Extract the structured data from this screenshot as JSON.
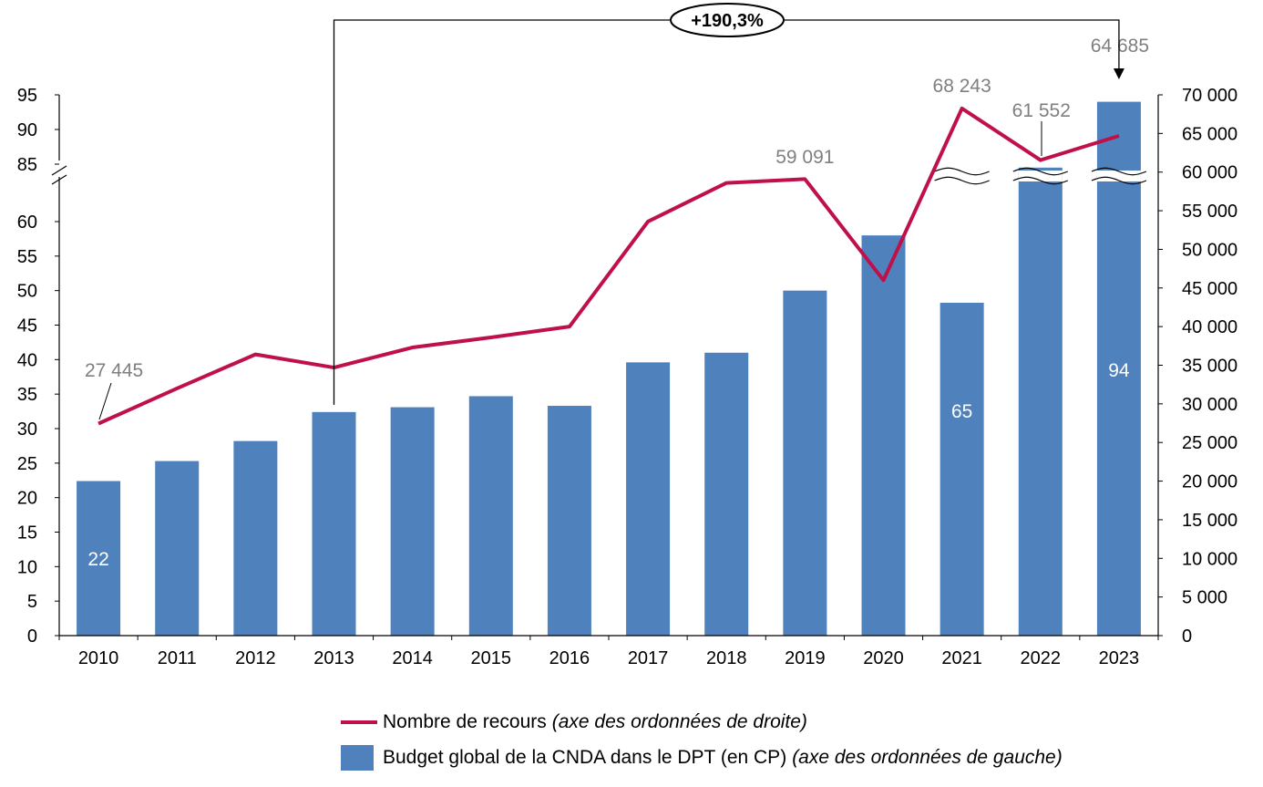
{
  "chart_data": {
    "type": "bar+line",
    "categories": [
      "2010",
      "2011",
      "2012",
      "2013",
      "2014",
      "2015",
      "2016",
      "2017",
      "2018",
      "2019",
      "2020",
      "2021",
      "2022",
      "2023"
    ],
    "series": [
      {
        "name": "Budget global de la CNDA dans le DPT (en CP)",
        "axis": "left",
        "values": [
          22.4,
          25.3,
          28.2,
          32.4,
          33.1,
          34.7,
          33.3,
          39.6,
          41.0,
          50.0,
          58.0,
          65.0,
          84.5,
          94.0
        ]
      },
      {
        "name": "Nombre de recours",
        "axis": "right",
        "values": [
          27445,
          32000,
          36400,
          34700,
          37300,
          38600,
          40000,
          53600,
          58600,
          59091,
          46000,
          68243,
          61552,
          64685
        ]
      }
    ],
    "left_axis": {
      "ticks_lower": [
        "0",
        "5",
        "10",
        "15",
        "20",
        "25",
        "30",
        "35",
        "40",
        "45",
        "50",
        "55",
        "60"
      ],
      "ticks_upper": [
        "85",
        "90",
        "95"
      ],
      "lower_range": [
        0,
        60
      ],
      "upper_range": [
        85,
        95
      ],
      "break": true
    },
    "right_axis": {
      "ticks": [
        "0",
        "5 000",
        "10 000",
        "15 000",
        "20 000",
        "25 000",
        "30 000",
        "35 000",
        "40 000",
        "45 000",
        "50 000",
        "55 000",
        "60 000",
        "65 000",
        "70 000"
      ],
      "ylim": [
        0,
        70000
      ]
    },
    "bar_labels": [
      {
        "index": 0,
        "text": "22"
      },
      {
        "index": 11,
        "text": "65"
      },
      {
        "index": 13,
        "text": "94"
      }
    ],
    "line_labels": [
      {
        "index": 0,
        "text": "27 445"
      },
      {
        "index": 9,
        "text": "59 091"
      },
      {
        "index": 11,
        "text": "68 243"
      },
      {
        "index": 12,
        "text": "61 552"
      },
      {
        "index": 13,
        "text": "64 685"
      }
    ],
    "growth_annotation": {
      "text": "+190,3%",
      "from": "2013",
      "to": "2023"
    },
    "colors": {
      "bars": "#4f81bd",
      "line": "#c0104a",
      "labels": "#7f7f7f"
    },
    "legend": [
      {
        "label": "Nombre de recours",
        "note": "(axe des ordonnées de droite)",
        "symbol": "line"
      },
      {
        "label": "Budget global de la CNDA dans le DPT (en CP)",
        "note": "(axe des ordonnées de gauche)",
        "symbol": "bar"
      }
    ],
    "legend_placement": "bottom"
  }
}
